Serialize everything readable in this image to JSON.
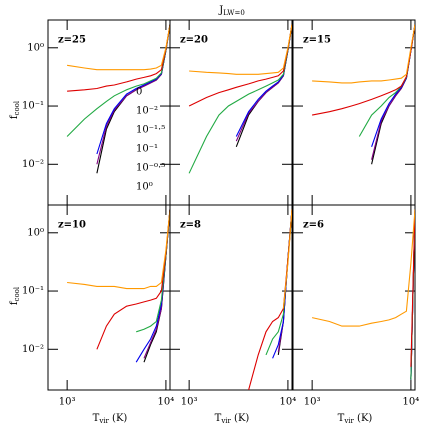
{
  "title": "J_LW=0",
  "xlabel": "T_vir (K)",
  "ylabel": "f_cool",
  "chart_data": [
    {
      "type": "line",
      "title": "z=25",
      "log_x": true,
      "log_y": true,
      "x": [
        1000,
        1500,
        2000,
        2500,
        3000,
        4000,
        5000,
        6000,
        7000,
        8000,
        9000,
        10000,
        11000
      ],
      "xlim": [
        640,
        11000
      ],
      "ylim": [
        0.002,
        3
      ],
      "xticks": [
        {
          "value": 1000,
          "label": "10³"
        },
        {
          "value": 10000,
          "label": "10⁴"
        }
      ],
      "yticks": [
        {
          "value": 1,
          "label": "10⁰"
        },
        {
          "value": 0.1,
          "label": "10⁻¹"
        },
        {
          "value": 0.01,
          "label": "10⁻²"
        }
      ],
      "series": [
        {
          "name": "0",
          "color": "#000000",
          "values": [
            null,
            null,
            0.007,
            0.04,
            0.08,
            0.15,
            0.19,
            0.22,
            0.25,
            0.28,
            0.35,
            0.9,
            2.5
          ]
        },
        {
          "name": "10⁻²",
          "color": "#800080",
          "values": [
            null,
            null,
            0.01,
            0.045,
            0.085,
            0.15,
            0.19,
            0.22,
            0.25,
            0.28,
            0.35,
            0.9,
            2.5
          ]
        },
        {
          "name": "10⁻¹·⁵",
          "color": "#0000ee",
          "values": [
            null,
            null,
            0.015,
            0.05,
            0.09,
            0.16,
            0.2,
            0.23,
            0.26,
            0.29,
            0.36,
            0.9,
            2.5
          ]
        },
        {
          "name": "10⁻¹",
          "color": "#22aa44",
          "values": [
            0.03,
            0.06,
            0.09,
            0.12,
            0.15,
            0.19,
            0.22,
            0.24,
            0.27,
            0.3,
            0.37,
            0.9,
            2.5
          ]
        },
        {
          "name": "10⁻⁰·⁵",
          "color": "#dd0000",
          "values": [
            0.18,
            0.19,
            0.2,
            0.22,
            0.23,
            0.26,
            0.29,
            0.31,
            0.33,
            0.36,
            0.42,
            0.95,
            2.5
          ]
        },
        {
          "name": "10⁰",
          "color": "#ff9900",
          "values": [
            0.5,
            0.45,
            0.42,
            0.42,
            0.42,
            0.42,
            0.42,
            0.42,
            0.43,
            0.45,
            0.5,
            1.0,
            2.5
          ]
        }
      ]
    },
    {
      "type": "line",
      "title": "z=20",
      "log_x": true,
      "log_y": true,
      "x": [
        1000,
        1500,
        2000,
        2500,
        3000,
        4000,
        5000,
        6000,
        7000,
        8000,
        9000,
        10000,
        11000
      ],
      "xlim": [
        640,
        11000
      ],
      "ylim": [
        0.002,
        3
      ],
      "xticks": [
        {
          "value": 1000,
          "label": "10³"
        },
        {
          "value": 10000,
          "label": "10⁴"
        }
      ],
      "yticks": [
        {
          "value": 1,
          "label": "10⁰"
        },
        {
          "value": 0.1,
          "label": "10⁻¹"
        },
        {
          "value": 0.01,
          "label": "10⁻²"
        }
      ],
      "series": [
        {
          "name": "0",
          "color": "#000000",
          "values": [
            null,
            null,
            null,
            null,
            0.02,
            0.07,
            0.12,
            0.17,
            0.21,
            0.25,
            0.33,
            0.9,
            2.5
          ]
        },
        {
          "name": "10⁻²",
          "color": "#800080",
          "values": [
            null,
            null,
            null,
            null,
            0.025,
            0.075,
            0.12,
            0.17,
            0.21,
            0.25,
            0.33,
            0.9,
            2.5
          ]
        },
        {
          "name": "10⁻¹·⁵",
          "color": "#0000ee",
          "values": [
            null,
            null,
            null,
            null,
            0.03,
            0.08,
            0.13,
            0.18,
            0.22,
            0.26,
            0.34,
            0.9,
            2.5
          ]
        },
        {
          "name": "10⁻¹",
          "color": "#22aa44",
          "values": [
            0.007,
            0.03,
            0.07,
            0.1,
            0.12,
            0.16,
            0.19,
            0.22,
            0.25,
            0.28,
            0.35,
            0.9,
            2.5
          ]
        },
        {
          "name": "10⁻⁰·⁵",
          "color": "#dd0000",
          "values": [
            0.1,
            0.14,
            0.17,
            0.19,
            0.21,
            0.24,
            0.27,
            0.29,
            0.31,
            0.33,
            0.4,
            0.95,
            2.5
          ]
        },
        {
          "name": "10⁰",
          "color": "#ff9900",
          "values": [
            0.4,
            0.38,
            0.37,
            0.36,
            0.35,
            0.35,
            0.35,
            0.36,
            0.37,
            0.38,
            0.45,
            1.0,
            2.5
          ]
        }
      ]
    },
    {
      "type": "line",
      "title": "z=15",
      "log_x": true,
      "log_y": true,
      "x": [
        1000,
        1500,
        2000,
        2500,
        3000,
        4000,
        5000,
        6000,
        7000,
        8000,
        9000,
        10000,
        11000
      ],
      "xlim": [
        640,
        11000
      ],
      "ylim": [
        0.002,
        3
      ],
      "xticks": [
        {
          "value": 1000,
          "label": "10³"
        },
        {
          "value": 10000,
          "label": "10⁴"
        }
      ],
      "yticks": [
        {
          "value": 1,
          "label": "10⁰"
        },
        {
          "value": 0.1,
          "label": "10⁻¹"
        },
        {
          "value": 0.01,
          "label": "10⁻²"
        }
      ],
      "series": [
        {
          "name": "0",
          "color": "#000000",
          "values": [
            null,
            null,
            null,
            null,
            null,
            0.01,
            0.05,
            0.1,
            0.15,
            0.2,
            0.3,
            0.9,
            2.5
          ]
        },
        {
          "name": "10⁻²",
          "color": "#800080",
          "values": [
            null,
            null,
            null,
            null,
            null,
            0.012,
            0.055,
            0.1,
            0.15,
            0.2,
            0.3,
            0.9,
            2.5
          ]
        },
        {
          "name": "10⁻¹·⁵",
          "color": "#0000ee",
          "values": [
            null,
            null,
            null,
            null,
            null,
            0.02,
            0.06,
            0.11,
            0.16,
            0.21,
            0.3,
            0.9,
            2.5
          ]
        },
        {
          "name": "10⁻¹",
          "color": "#22aa44",
          "values": [
            null,
            null,
            null,
            null,
            0.03,
            0.07,
            0.1,
            0.14,
            0.17,
            0.22,
            0.31,
            0.9,
            2.5
          ]
        },
        {
          "name": "10⁻⁰·⁵",
          "color": "#dd0000",
          "values": [
            0.07,
            0.08,
            0.09,
            0.1,
            0.11,
            0.13,
            0.15,
            0.17,
            0.19,
            0.22,
            0.32,
            0.9,
            2.5
          ]
        },
        {
          "name": "10⁰",
          "color": "#ff9900",
          "values": [
            0.27,
            0.26,
            0.25,
            0.25,
            0.26,
            0.27,
            0.27,
            0.28,
            0.29,
            0.3,
            0.35,
            1.0,
            2.5
          ]
        }
      ]
    },
    {
      "type": "line",
      "title": "z=10",
      "log_x": true,
      "log_y": true,
      "x": [
        1000,
        1500,
        2000,
        2500,
        3000,
        4000,
        5000,
        6000,
        7000,
        8000,
        9000,
        10000,
        11000
      ],
      "xlim": [
        640,
        11000
      ],
      "ylim": [
        0.002,
        3
      ],
      "xticks": [
        {
          "value": 1000,
          "label": "10³"
        },
        {
          "value": 10000,
          "label": "10⁴"
        }
      ],
      "yticks": [
        {
          "value": 1,
          "label": "10⁰"
        },
        {
          "value": 0.1,
          "label": "10⁻¹"
        },
        {
          "value": 0.01,
          "label": "10⁻²"
        }
      ],
      "series": [
        {
          "name": "0",
          "color": "#000000",
          "values": [
            null,
            null,
            null,
            null,
            null,
            null,
            null,
            0.006,
            0.012,
            0.02,
            0.05,
            0.4,
            2.5
          ]
        },
        {
          "name": "10⁻²",
          "color": "#800080",
          "values": [
            null,
            null,
            null,
            null,
            null,
            null,
            null,
            0.007,
            0.013,
            0.022,
            0.05,
            0.4,
            2.5
          ]
        },
        {
          "name": "10⁻¹·⁵",
          "color": "#0000ee",
          "values": [
            null,
            null,
            null,
            null,
            null,
            null,
            0.006,
            0.01,
            0.015,
            0.025,
            0.06,
            0.4,
            2.5
          ]
        },
        {
          "name": "10⁻¹",
          "color": "#22aa44",
          "values": [
            null,
            null,
            null,
            null,
            null,
            null,
            0.02,
            0.022,
            0.025,
            0.03,
            0.07,
            0.4,
            2.5
          ]
        },
        {
          "name": "10⁻⁰·⁵",
          "color": "#dd0000",
          "values": [
            null,
            null,
            0.01,
            0.025,
            0.04,
            0.055,
            0.06,
            0.065,
            0.07,
            0.075,
            0.1,
            0.45,
            2.5
          ]
        },
        {
          "name": "10⁰",
          "color": "#ff9900",
          "values": [
            0.14,
            0.13,
            0.12,
            0.12,
            0.12,
            0.11,
            0.11,
            0.11,
            0.12,
            0.12,
            0.14,
            0.5,
            2.5
          ]
        }
      ]
    },
    {
      "type": "line",
      "title": "z=8",
      "log_x": true,
      "log_y": true,
      "x": [
        1000,
        1500,
        2000,
        2500,
        3000,
        4000,
        5000,
        6000,
        7000,
        8000,
        9000,
        10000,
        11000
      ],
      "xlim": [
        640,
        11000
      ],
      "ylim": [
        0.002,
        3
      ],
      "xticks": [
        {
          "value": 1000,
          "label": "10³"
        },
        {
          "value": 10000,
          "label": "10⁴"
        }
      ],
      "yticks": [
        {
          "value": 1,
          "label": "10⁰"
        },
        {
          "value": 0.1,
          "label": "10⁻¹"
        },
        {
          "value": 0.01,
          "label": "10⁻²"
        }
      ],
      "series": [
        {
          "name": "0",
          "color": "#000000",
          "values": [
            null,
            null,
            null,
            null,
            null,
            null,
            null,
            null,
            null,
            0.008,
            0.03,
            0.35,
            2.5
          ]
        },
        {
          "name": "10⁻²",
          "color": "#800080",
          "values": [
            null,
            null,
            null,
            null,
            null,
            null,
            null,
            null,
            null,
            0.009,
            0.03,
            0.35,
            2.5
          ]
        },
        {
          "name": "10⁻¹·⁵",
          "color": "#0000ee",
          "values": [
            null,
            null,
            null,
            null,
            null,
            null,
            null,
            null,
            0.007,
            0.012,
            0.03,
            0.35,
            2.5
          ]
        },
        {
          "name": "10⁻¹",
          "color": "#22aa44",
          "values": [
            null,
            null,
            null,
            null,
            null,
            null,
            null,
            0.008,
            0.015,
            0.02,
            0.04,
            0.35,
            2.5
          ]
        },
        {
          "name": "10⁻⁰·⁵",
          "color": "#dd0000",
          "values": [
            null,
            null,
            null,
            null,
            null,
            0.002,
            0.008,
            0.02,
            0.03,
            0.035,
            0.05,
            0.35,
            2.5
          ]
        },
        {
          "name": "10⁰",
          "color": "#ff9900",
          "values": [
            null,
            null,
            null,
            null,
            null,
            null,
            null,
            null,
            null,
            null,
            0.05,
            0.3,
            2.5
          ]
        }
      ]
    },
    {
      "type": "line",
      "title": "z=6",
      "log_x": true,
      "log_y": true,
      "x": [
        1000,
        1500,
        2000,
        2500,
        3000,
        4000,
        5000,
        6000,
        7000,
        8000,
        9000,
        10000,
        11000
      ],
      "xlim": [
        640,
        11000
      ],
      "ylim": [
        0.002,
        3
      ],
      "xticks": [
        {
          "value": 1000,
          "label": "10³"
        },
        {
          "value": 10000,
          "label": "10⁴"
        }
      ],
      "yticks": [
        {
          "value": 1,
          "label": "10⁰"
        },
        {
          "value": 0.1,
          "label": "10⁻¹"
        },
        {
          "value": 0.01,
          "label": "10⁻²"
        }
      ],
      "series": [
        {
          "name": "0",
          "color": "#000000",
          "values": [
            null,
            null,
            null,
            null,
            null,
            null,
            null,
            null,
            null,
            null,
            null,
            0.003,
            2.5
          ]
        },
        {
          "name": "10⁻²",
          "color": "#800080",
          "values": [
            null,
            null,
            null,
            null,
            null,
            null,
            null,
            null,
            null,
            null,
            null,
            0.003,
            2.5
          ]
        },
        {
          "name": "10⁻¹·⁵",
          "color": "#0000ee",
          "values": [
            null,
            null,
            null,
            null,
            null,
            null,
            null,
            null,
            null,
            null,
            null,
            0.003,
            2.5
          ]
        },
        {
          "name": "10⁻¹",
          "color": "#22aa44",
          "values": [
            null,
            null,
            null,
            null,
            null,
            null,
            null,
            null,
            null,
            null,
            null,
            0.003,
            2.5
          ]
        },
        {
          "name": "10⁻⁰·⁵",
          "color": "#dd0000",
          "values": [
            null,
            null,
            null,
            null,
            null,
            null,
            null,
            null,
            null,
            null,
            null,
            0.005,
            2.5
          ]
        },
        {
          "name": "10⁰",
          "color": "#ff9900",
          "values": [
            0.035,
            0.03,
            0.025,
            0.025,
            0.025,
            0.028,
            0.03,
            0.032,
            0.035,
            0.04,
            0.045,
            0.3,
            2.5
          ]
        }
      ]
    }
  ]
}
